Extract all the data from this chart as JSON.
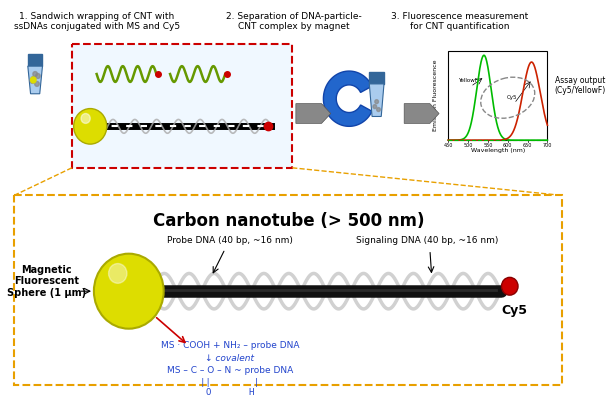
{
  "title_top": "1. Sandwich wrapping of CNT with\nssDNAs conjugated with MS and Cy5",
  "title_mid": "2. Separation of DNA-particle-\nCNT complex by magnet",
  "title_right": "3. Fluorescence measurement\nfor CNT quantification",
  "assay_output": "Assay output\n(Cy5/YellowF)",
  "yellowF_label": "YellowF",
  "cy5_label": "Cy5",
  "xlabel": "Wavelength (nm)",
  "ylabel": "Emission Fluorescence",
  "bottom_title": "Carbon nanotube (> 500 nm)",
  "probe_dna": "Probe DNA (40 bp, ~16 nm)",
  "signaling_dna": "Signaling DNA (40 bp, ~16 nm)",
  "cy5_bottom": "Cy5",
  "ms_label": "Magnetic\nFluorescent\nSphere (1 μm)",
  "chem1": "MS · COOH + NH₂ – probe DNA",
  "chem2": "↓ covalent",
  "chem3": "MS – C – O – N ~ probe DNA",
  "chem4": "||        |",
  "chem5": "O       H",
  "bg_color": "#ffffff",
  "orange_border": "#e8a000",
  "red_border": "#cc0000",
  "green_color": "#44aa00",
  "red_color": "#cc0000",
  "yellow_color": "#dddd00",
  "black_color": "#111111",
  "blue_color": "#2244cc",
  "gray_color": "#888888",
  "wave_green": "#669900",
  "fluorescence_green": "#00bb00",
  "fluorescence_red": "#cc2200"
}
